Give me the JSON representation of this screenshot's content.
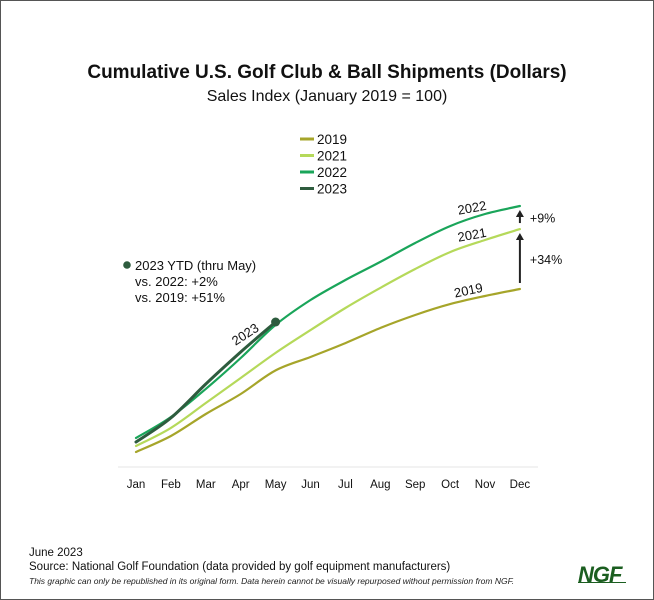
{
  "header": {
    "title": "Cumulative U.S. Golf Club & Ball Shipments (Dollars)",
    "subtitle": "Sales Index (January 2019 = 100)"
  },
  "chart_data": {
    "type": "line",
    "title": "Cumulative U.S. Golf Club & Ball Shipments (Dollars)",
    "subtitle": "Sales Index (January 2019 = 100)",
    "xlabel": "",
    "ylabel": "",
    "categories": [
      "Jan",
      "Feb",
      "Mar",
      "Apr",
      "May",
      "Jun",
      "Jul",
      "Aug",
      "Sep",
      "Oct",
      "Nov",
      "Dec"
    ],
    "ylim": [
      0,
      2200
    ],
    "grid": false,
    "y_axis_visible": false,
    "legend_position": "top-center",
    "series": [
      {
        "name": "2019",
        "color": "#a6a52a",
        "values": [
          100,
          223,
          392,
          546,
          728,
          831,
          938,
          1054,
          1154,
          1238,
          1300,
          1354
        ]
      },
      {
        "name": "2021",
        "color": "#b5d95a",
        "values": [
          146,
          285,
          477,
          669,
          862,
          1038,
          1208,
          1362,
          1508,
          1638,
          1731,
          1815
        ]
      },
      {
        "name": "2022",
        "color": "#1aa55a",
        "values": [
          208,
          369,
          585,
          823,
          1078,
          1269,
          1423,
          1562,
          1708,
          1838,
          1931,
          1992
        ]
      },
      {
        "name": "2023",
        "color": "#2e5c3e",
        "values": [
          177,
          362,
          623,
          869,
          1100
        ]
      }
    ],
    "annotations": {
      "ytd": {
        "marker_series": "2023",
        "marker_month": "May",
        "lines": [
          "2023 YTD (thru May)",
          "vs. 2022: +2%",
          "vs. 2019: +51%"
        ]
      },
      "line_labels": {
        "2019": "2019",
        "2021": "2021",
        "2022": "2022",
        "2023": "2023"
      },
      "dec_comparisons": [
        {
          "from": "2021",
          "to": "2022",
          "label": "+9%"
        },
        {
          "from": "2019",
          "to": "2021",
          "label": "+34%"
        }
      ]
    }
  },
  "footer": {
    "date": "June 2023",
    "source": "Source: National Golf Foundation (data provided by golf equipment manufacturers)",
    "note": "This graphic can only be republished in its original form. Data herein cannot be visually repurposed without permission from NGF.",
    "logo": "NGF"
  }
}
